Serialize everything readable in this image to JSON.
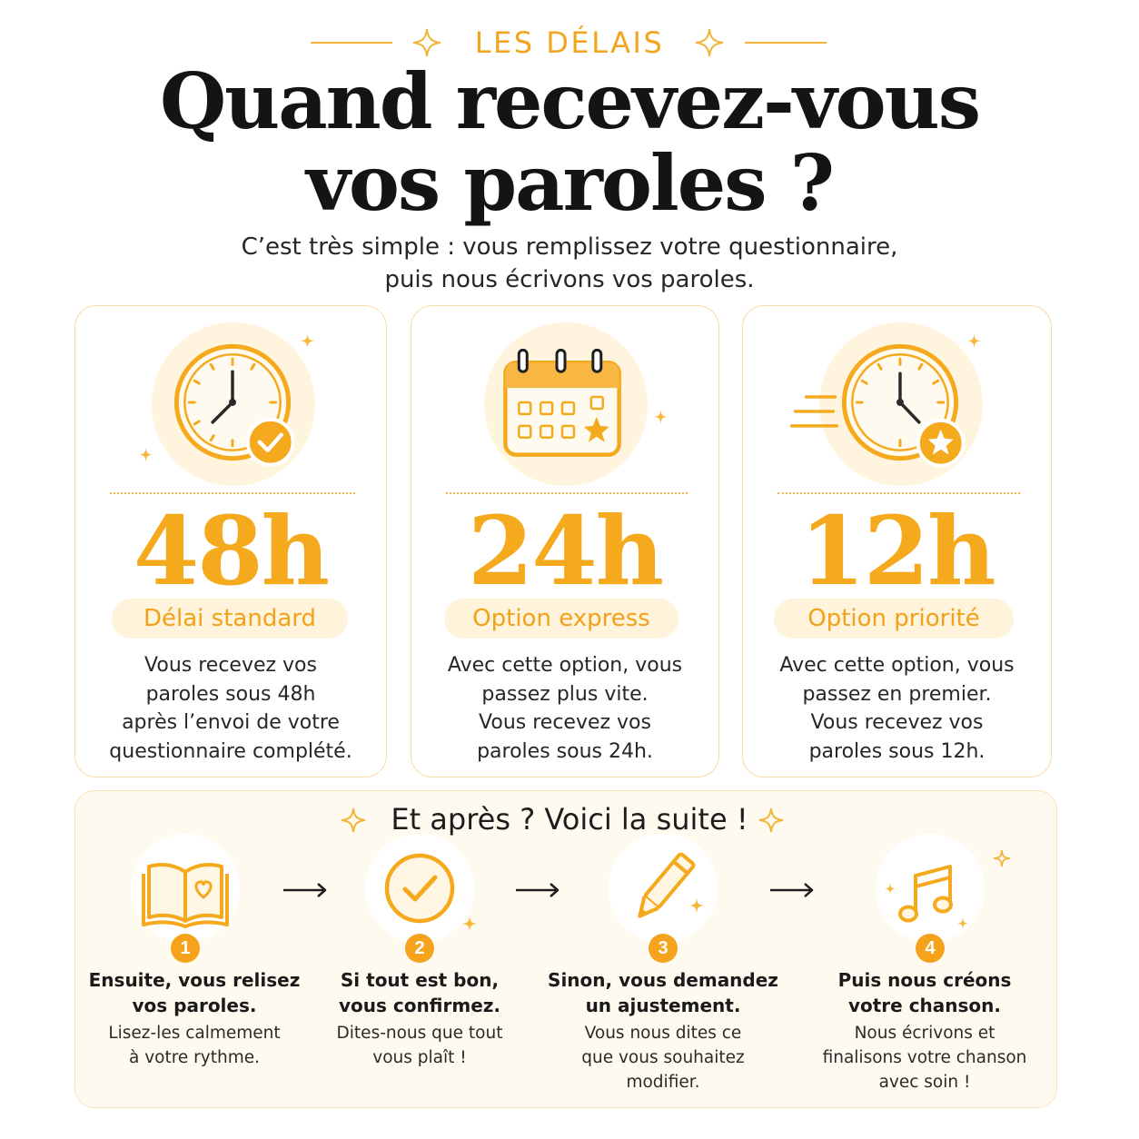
{
  "header": {
    "eyebrow": "LES DÉLAIS",
    "title_line1": "Quand recevez-vous",
    "title_line2": "vos paroles ?",
    "subtitle_line1": "C’est très simple : vous remplissez votre questionnaire,",
    "subtitle_line2": "puis nous écrivons vos paroles."
  },
  "colors": {
    "accent": "#f5a91d",
    "accent_light": "#fff3dc",
    "border": "#f6dba7",
    "text": "#1f1f1f"
  },
  "options": [
    {
      "icon": "clock-check-icon",
      "time": "48h",
      "label": "Délai standard",
      "desc": [
        "Vous recevez vos",
        "paroles sous 48h",
        "après l’envoi de votre",
        "questionnaire complété."
      ]
    },
    {
      "icon": "calendar-star-icon",
      "time": "24h",
      "label": "Option express",
      "desc": [
        "Avec cette option, vous",
        "passez plus vite.",
        "Vous recevez vos",
        "paroles sous 24h."
      ]
    },
    {
      "icon": "fast-clock-star-icon",
      "time": "12h",
      "label": "Option priorité",
      "desc": [
        "Avec cette option, vous",
        "passez en premier.",
        "Vous recevez vos",
        "paroles sous 12h."
      ]
    }
  ],
  "next_steps": {
    "title": "Et après ? Voici la suite !",
    "steps": [
      {
        "icon": "open-book-heart-icon",
        "number": "1",
        "title": [
          "Ensuite, vous relisez",
          "vos paroles."
        ],
        "desc": [
          "Lisez-les calmement",
          "à votre rythme."
        ]
      },
      {
        "icon": "check-circle-icon",
        "number": "2",
        "title": [
          "Si tout est bon,",
          "vous confirmez."
        ],
        "desc": [
          "Dites-nous que tout",
          "vous plaît !"
        ]
      },
      {
        "icon": "pencil-icon",
        "number": "3",
        "title": [
          "Sinon, vous demandez",
          "un ajustement."
        ],
        "desc": [
          "Vous nous dites ce",
          "que vous souhaitez",
          "modifier."
        ]
      },
      {
        "icon": "music-note-icon",
        "number": "4",
        "title": [
          "Puis nous créons",
          "votre chanson."
        ],
        "desc": [
          "Nous écrivons et",
          "finalisons votre chanson",
          "avec soin !"
        ]
      }
    ]
  }
}
